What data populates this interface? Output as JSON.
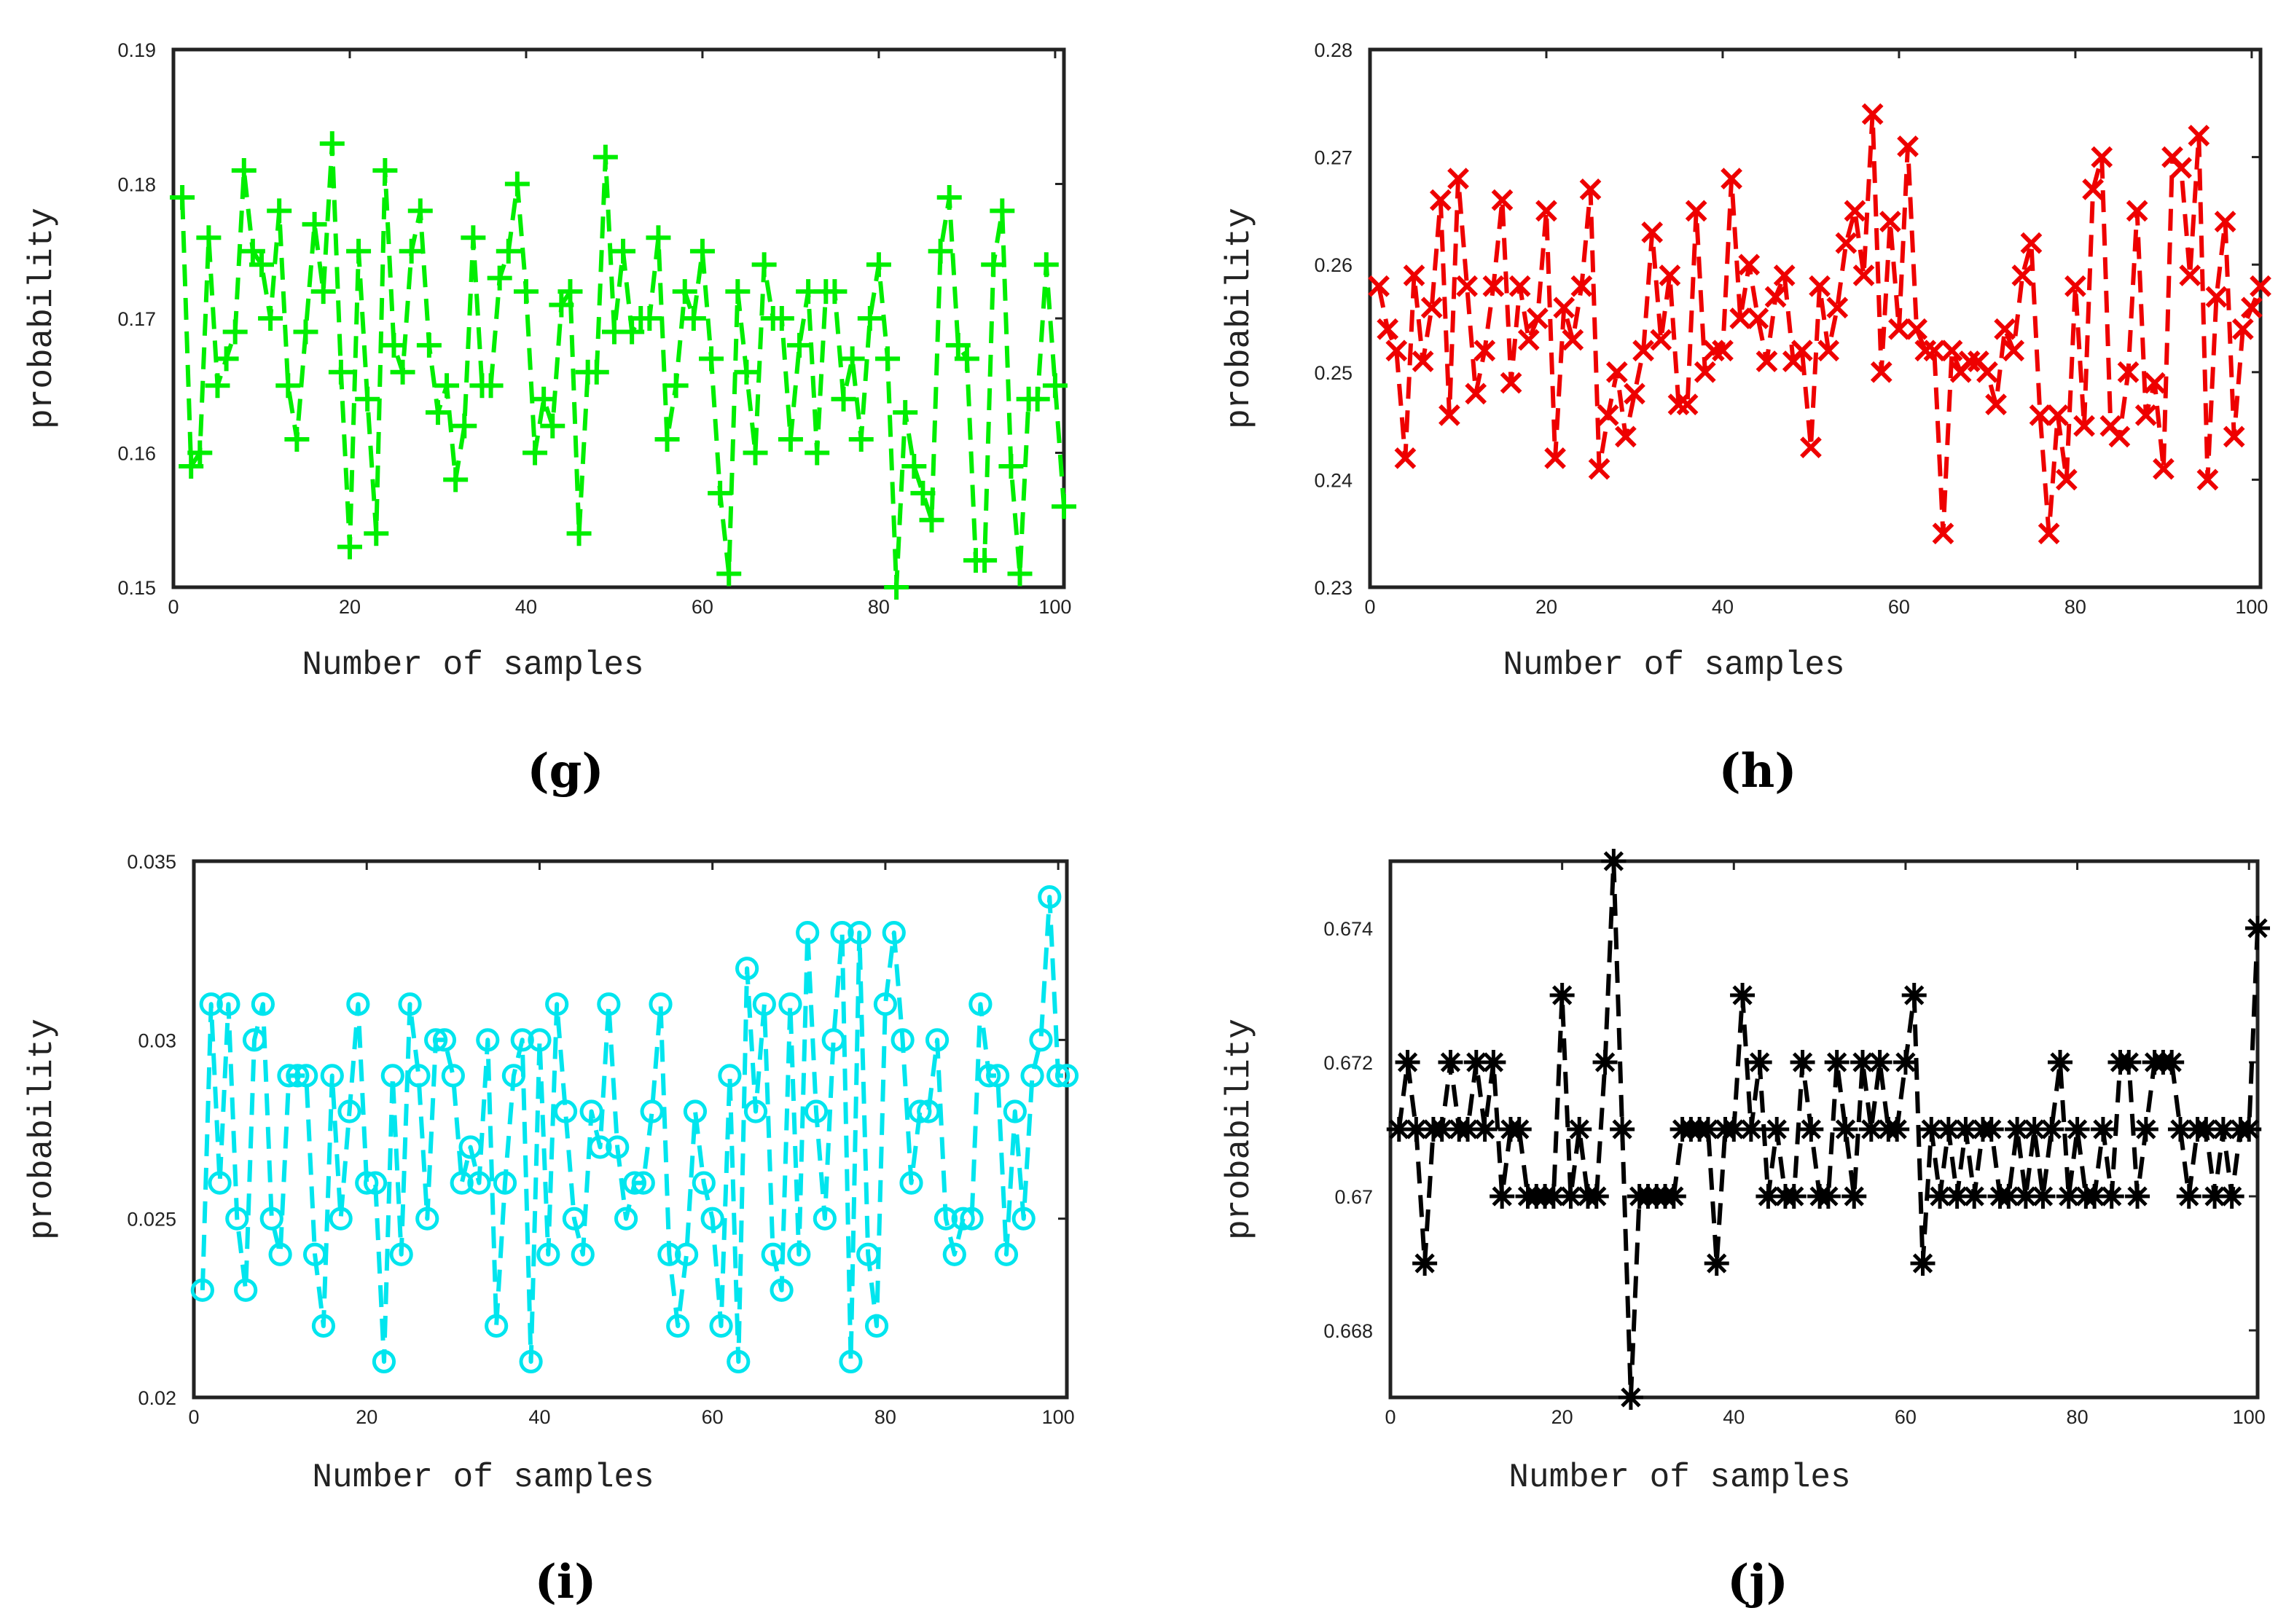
{
  "figure": {
    "description_panels": [
      "g",
      "h",
      "i",
      "j"
    ]
  },
  "chart_data": [
    {
      "type": "line",
      "panel": "(g)",
      "xlabel": "Number of samples",
      "ylabel": "probability",
      "xlim": [
        0,
        101
      ],
      "ylim": [
        0.15,
        0.19
      ],
      "xticks": [
        "0",
        "20",
        "40",
        "60",
        "80",
        "100"
      ],
      "yticks": [
        "0.15",
        "0.16",
        "0.17",
        "0.18",
        "0.19"
      ],
      "color": "#00ee00",
      "marker": "plus",
      "linestyle": "dashed",
      "x": [
        1,
        2,
        3,
        4,
        5,
        6,
        7,
        8,
        9,
        10,
        11,
        12,
        13,
        14,
        15,
        16,
        17,
        18,
        19,
        20,
        21,
        22,
        23,
        24,
        25,
        26,
        27,
        28,
        29,
        30,
        31,
        32,
        33,
        34,
        35,
        36,
        37,
        38,
        39,
        40,
        41,
        42,
        43,
        44,
        45,
        46,
        47,
        48,
        49,
        50,
        51,
        52,
        53,
        54,
        55,
        56,
        57,
        58,
        59,
        60,
        61,
        62,
        63,
        64,
        65,
        66,
        67,
        68,
        69,
        70,
        71,
        72,
        73,
        74,
        75,
        76,
        77,
        78,
        79,
        80,
        81,
        82,
        83,
        84,
        85,
        86,
        87,
        88,
        89,
        90,
        91,
        92,
        93,
        94,
        95,
        96,
        97,
        98,
        99,
        100,
        101
      ],
      "values": [
        0.179,
        0.159,
        0.16,
        0.176,
        0.165,
        0.167,
        0.169,
        0.181,
        0.175,
        0.174,
        0.17,
        0.178,
        0.165,
        0.161,
        0.169,
        0.177,
        0.172,
        0.183,
        0.166,
        0.153,
        0.175,
        0.164,
        0.154,
        0.181,
        0.168,
        0.166,
        0.175,
        0.178,
        0.168,
        0.163,
        0.165,
        0.158,
        0.162,
        0.176,
        0.165,
        0.165,
        0.173,
        0.175,
        0.18,
        0.172,
        0.16,
        0.164,
        0.162,
        0.171,
        0.172,
        0.154,
        0.166,
        0.166,
        0.182,
        0.169,
        0.175,
        0.169,
        0.17,
        0.17,
        0.176,
        0.161,
        0.165,
        0.172,
        0.17,
        0.175,
        0.167,
        0.157,
        0.151,
        0.172,
        0.166,
        0.16,
        0.174,
        0.17,
        0.17,
        0.161,
        0.168,
        0.172,
        0.16,
        0.172,
        0.172,
        0.164,
        0.167,
        0.161,
        0.17,
        0.174,
        0.167,
        0.15,
        0.163,
        0.159,
        0.157,
        0.155,
        0.175,
        0.179,
        0.168,
        0.167,
        0.152,
        0.152,
        0.174,
        0.178,
        0.159,
        0.151,
        0.164,
        0.164,
        0.174,
        0.165,
        0.156
      ]
    },
    {
      "type": "line",
      "panel": "(h)",
      "xlabel": "Number of samples",
      "ylabel": "probability",
      "xlim": [
        0,
        101
      ],
      "ylim": [
        0.23,
        0.28
      ],
      "xticks": [
        "0",
        "20",
        "40",
        "60",
        "80",
        "100"
      ],
      "yticks": [
        "0.23",
        "0.24",
        "0.25",
        "0.26",
        "0.27",
        "0.28"
      ],
      "color": "#ee0000",
      "marker": "cross",
      "linestyle": "dashed",
      "x": [
        1,
        2,
        3,
        4,
        5,
        6,
        7,
        8,
        9,
        10,
        11,
        12,
        13,
        14,
        15,
        16,
        17,
        18,
        19,
        20,
        21,
        22,
        23,
        24,
        25,
        26,
        27,
        28,
        29,
        30,
        31,
        32,
        33,
        34,
        35,
        36,
        37,
        38,
        39,
        40,
        41,
        42,
        43,
        44,
        45,
        46,
        47,
        48,
        49,
        50,
        51,
        52,
        53,
        54,
        55,
        56,
        57,
        58,
        59,
        60,
        61,
        62,
        63,
        64,
        65,
        66,
        67,
        68,
        69,
        70,
        71,
        72,
        73,
        74,
        75,
        76,
        77,
        78,
        79,
        80,
        81,
        82,
        83,
        84,
        85,
        86,
        87,
        88,
        89,
        90,
        91,
        92,
        93,
        94,
        95,
        96,
        97,
        98,
        99,
        100,
        101
      ],
      "values": [
        0.258,
        0.254,
        0.252,
        0.242,
        0.259,
        0.251,
        0.256,
        0.266,
        0.246,
        0.268,
        0.258,
        0.248,
        0.252,
        0.258,
        0.266,
        0.249,
        0.258,
        0.253,
        0.255,
        0.265,
        0.242,
        0.256,
        0.253,
        0.258,
        0.267,
        0.241,
        0.246,
        0.25,
        0.244,
        0.248,
        0.252,
        0.263,
        0.253,
        0.259,
        0.247,
        0.247,
        0.265,
        0.25,
        0.252,
        0.252,
        0.268,
        0.255,
        0.26,
        0.255,
        0.251,
        0.257,
        0.259,
        0.251,
        0.252,
        0.243,
        0.258,
        0.252,
        0.256,
        0.262,
        0.265,
        0.259,
        0.274,
        0.25,
        0.264,
        0.254,
        0.271,
        0.254,
        0.252,
        0.252,
        0.235,
        0.252,
        0.25,
        0.251,
        0.251,
        0.25,
        0.247,
        0.254,
        0.252,
        0.259,
        0.262,
        0.246,
        0.235,
        0.246,
        0.24,
        0.258,
        0.245,
        0.267,
        0.27,
        0.245,
        0.244,
        0.25,
        0.265,
        0.246,
        0.249,
        0.241,
        0.27,
        0.269,
        0.259,
        0.272,
        0.24,
        0.257,
        0.264,
        0.244,
        0.254,
        0.256,
        0.258
      ]
    },
    {
      "type": "line",
      "panel": "(i)",
      "xlabel": "Number of samples",
      "ylabel": "probability",
      "xlim": [
        0,
        101
      ],
      "ylim": [
        0.02,
        0.035
      ],
      "xticks": [
        "0",
        "20",
        "40",
        "60",
        "80",
        "100"
      ],
      "yticks": [
        "0.02",
        "0.025",
        "0.03",
        "0.035"
      ],
      "color": "#00e5ee",
      "marker": "circle",
      "linestyle": "dashed",
      "x": [
        1,
        2,
        3,
        4,
        5,
        6,
        7,
        8,
        9,
        10,
        11,
        12,
        13,
        14,
        15,
        16,
        17,
        18,
        19,
        20,
        21,
        22,
        23,
        24,
        25,
        26,
        27,
        28,
        29,
        30,
        31,
        32,
        33,
        34,
        35,
        36,
        37,
        38,
        39,
        40,
        41,
        42,
        43,
        44,
        45,
        46,
        47,
        48,
        49,
        50,
        51,
        52,
        53,
        54,
        55,
        56,
        57,
        58,
        59,
        60,
        61,
        62,
        63,
        64,
        65,
        66,
        67,
        68,
        69,
        70,
        71,
        72,
        73,
        74,
        75,
        76,
        77,
        78,
        79,
        80,
        81,
        82,
        83,
        84,
        85,
        86,
        87,
        88,
        89,
        90,
        91,
        92,
        93,
        94,
        95,
        96,
        97,
        98,
        99,
        100,
        101
      ],
      "values": [
        0.023,
        0.031,
        0.026,
        0.031,
        0.025,
        0.023,
        0.03,
        0.031,
        0.025,
        0.024,
        0.029,
        0.029,
        0.029,
        0.024,
        0.022,
        0.029,
        0.025,
        0.028,
        0.031,
        0.026,
        0.026,
        0.021,
        0.029,
        0.024,
        0.031,
        0.029,
        0.025,
        0.03,
        0.03,
        0.029,
        0.026,
        0.027,
        0.026,
        0.03,
        0.022,
        0.026,
        0.029,
        0.03,
        0.021,
        0.03,
        0.024,
        0.031,
        0.028,
        0.025,
        0.024,
        0.028,
        0.027,
        0.031,
        0.027,
        0.025,
        0.026,
        0.026,
        0.028,
        0.031,
        0.024,
        0.022,
        0.024,
        0.028,
        0.026,
        0.025,
        0.022,
        0.029,
        0.021,
        0.032,
        0.028,
        0.031,
        0.024,
        0.023,
        0.031,
        0.024,
        0.033,
        0.028,
        0.025,
        0.03,
        0.033,
        0.021,
        0.033,
        0.024,
        0.022,
        0.031,
        0.033,
        0.03,
        0.026,
        0.028,
        0.028,
        0.03,
        0.025,
        0.024,
        0.025,
        0.025,
        0.031,
        0.029,
        0.029,
        0.024,
        0.028,
        0.025,
        0.029,
        0.03,
        0.034,
        0.029,
        0.029
      ]
    },
    {
      "type": "line",
      "panel": "(j)",
      "xlabel": "Number of samples",
      "ylabel": "probability",
      "xlim": [
        0,
        101
      ],
      "ylim": [
        0.667,
        0.675
      ],
      "xticks": [
        "0",
        "20",
        "40",
        "60",
        "80",
        "100"
      ],
      "yticks": [
        "0.668",
        "0.67",
        "0.672",
        "0.674"
      ],
      "color": "#000000",
      "marker": "asterisk",
      "linestyle": "dashed",
      "x": [
        1,
        2,
        3,
        4,
        5,
        6,
        7,
        8,
        9,
        10,
        11,
        12,
        13,
        14,
        15,
        16,
        17,
        18,
        19,
        20,
        21,
        22,
        23,
        24,
        25,
        26,
        27,
        28,
        29,
        30,
        31,
        32,
        33,
        34,
        35,
        36,
        37,
        38,
        39,
        40,
        41,
        42,
        43,
        44,
        45,
        46,
        47,
        48,
        49,
        50,
        51,
        52,
        53,
        54,
        55,
        56,
        57,
        58,
        59,
        60,
        61,
        62,
        63,
        64,
        65,
        66,
        67,
        68,
        69,
        70,
        71,
        72,
        73,
        74,
        75,
        76,
        77,
        78,
        79,
        80,
        81,
        82,
        83,
        84,
        85,
        86,
        87,
        88,
        89,
        90,
        91,
        92,
        93,
        94,
        95,
        96,
        97,
        98,
        99,
        100,
        101
      ],
      "values": [
        0.671,
        0.672,
        0.671,
        0.669,
        0.671,
        0.671,
        0.672,
        0.671,
        0.671,
        0.672,
        0.671,
        0.672,
        0.67,
        0.671,
        0.671,
        0.67,
        0.67,
        0.67,
        0.67,
        0.673,
        0.67,
        0.671,
        0.67,
        0.67,
        0.672,
        0.675,
        0.671,
        0.667,
        0.67,
        0.67,
        0.67,
        0.67,
        0.67,
        0.671,
        0.671,
        0.671,
        0.671,
        0.669,
        0.671,
        0.671,
        0.673,
        0.671,
        0.672,
        0.67,
        0.671,
        0.67,
        0.67,
        0.672,
        0.671,
        0.67,
        0.67,
        0.672,
        0.671,
        0.67,
        0.672,
        0.671,
        0.672,
        0.671,
        0.671,
        0.672,
        0.673,
        0.669,
        0.671,
        0.67,
        0.671,
        0.67,
        0.671,
        0.67,
        0.671,
        0.671,
        0.67,
        0.67,
        0.671,
        0.67,
        0.671,
        0.67,
        0.671,
        0.672,
        0.67,
        0.671,
        0.67,
        0.67,
        0.671,
        0.67,
        0.672,
        0.672,
        0.67,
        0.671,
        0.672,
        0.672,
        0.672,
        0.671,
        0.67,
        0.671,
        0.671,
        0.67,
        0.671,
        0.67,
        0.671,
        0.671,
        0.674
      ]
    }
  ]
}
